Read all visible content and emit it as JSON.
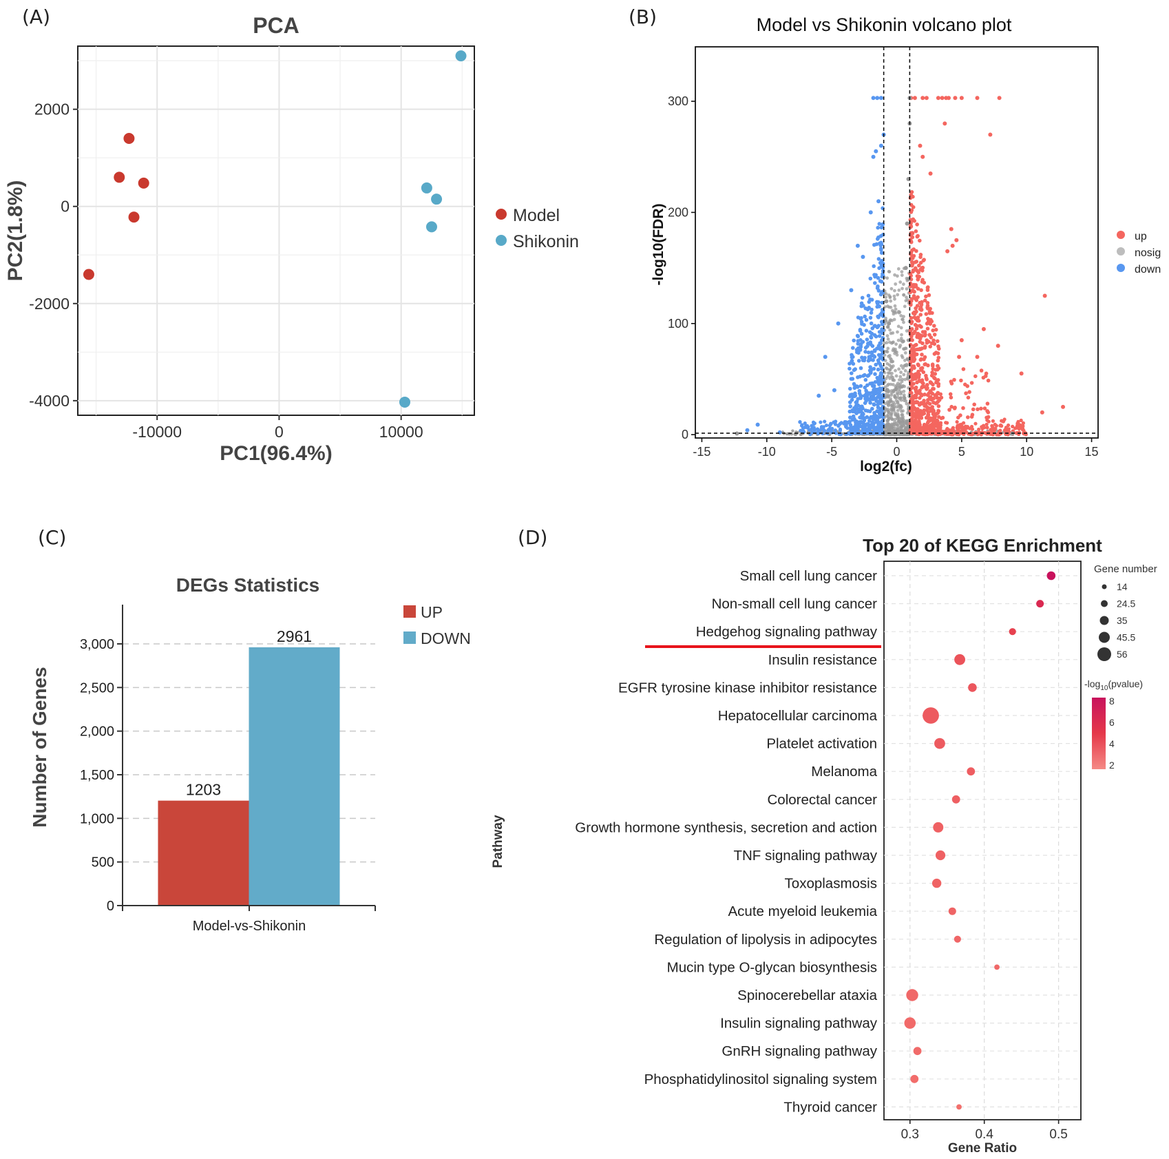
{
  "chart_data": [
    {
      "panel_label": "(A)",
      "type": "scatter",
      "title": "PCA",
      "xlabel": "PC1(96.4%)",
      "ylabel": "PC2(1.8%)",
      "xlim": [
        -16500,
        16000
      ],
      "ylim": [
        -4300,
        3300
      ],
      "xticks": [
        -10000,
        0,
        10000
      ],
      "xtick_labels": [
        "-10000",
        "0",
        "10000"
      ],
      "yticks": [
        2000,
        0,
        -2000,
        -4000
      ],
      "ytick_labels": [
        "2000",
        "0",
        "-2000",
        "-4000"
      ],
      "grid": true,
      "legend_position": "right",
      "series": [
        {
          "name": "Model",
          "color": "#c9392e",
          "x": [
            -12300,
            -13100,
            -11100,
            -11900,
            -15600
          ],
          "y": [
            1400,
            600,
            480,
            -220,
            -1400
          ]
        },
        {
          "name": "Shikonin",
          "color": "#58a9c8",
          "x": [
            14900,
            12100,
            12900,
            12500,
            10300
          ],
          "y": [
            3100,
            380,
            150,
            -420,
            -4030
          ]
        }
      ]
    },
    {
      "panel_label": "(B)",
      "type": "scatter",
      "title": "Model vs Shikonin volcano plot",
      "xlabel": "log2(fc)",
      "ylabel": "-log10(FDR)",
      "xlim": [
        -15.5,
        15.5
      ],
      "ylim": [
        -3,
        349
      ],
      "xticks": [
        -15,
        -10,
        -5,
        0,
        5,
        10,
        15
      ],
      "xtick_labels": [
        "-15",
        "-10",
        "-5",
        "0",
        "5",
        "10",
        "15"
      ],
      "yticks": [
        0,
        100,
        200,
        300
      ],
      "ytick_labels": [
        "0",
        "100",
        "200",
        "300"
      ],
      "thresholds": {
        "log2fc": [
          -1,
          1
        ],
        "neg_log10_fdr": 1.3
      },
      "legend_position": "right",
      "series": [
        {
          "name": "up",
          "color": "#f4665f"
        },
        {
          "name": "nosig",
          "color": "#9a9a9a"
        },
        {
          "name": "down",
          "color": "#5897f0"
        }
      ],
      "highlight_points": {
        "up": [
          [
            1.1,
            303
          ],
          [
            1.4,
            303
          ],
          [
            2.0,
            303
          ],
          [
            2.3,
            303
          ],
          [
            3.2,
            303
          ],
          [
            3.5,
            303
          ],
          [
            3.8,
            303
          ],
          [
            4.0,
            303
          ],
          [
            4.5,
            303
          ],
          [
            5.0,
            303
          ],
          [
            6.2,
            303
          ],
          [
            7.9,
            303
          ],
          [
            3.7,
            280
          ],
          [
            7.2,
            270
          ],
          [
            1.8,
            260
          ],
          [
            2.0,
            250
          ],
          [
            2.6,
            235
          ],
          [
            4.2,
            185
          ],
          [
            4.6,
            175
          ],
          [
            4.3,
            170
          ],
          [
            3.9,
            165
          ],
          [
            11.4,
            125
          ],
          [
            6.7,
            95
          ],
          [
            7.8,
            80
          ],
          [
            5.0,
            85
          ],
          [
            4.8,
            70
          ],
          [
            6.2,
            70
          ],
          [
            9.6,
            55
          ],
          [
            12.8,
            25
          ],
          [
            11.2,
            20
          ],
          [
            8.2,
            12
          ],
          [
            9.3,
            8
          ]
        ],
        "down": [
          [
            -1.8,
            303
          ],
          [
            -1.5,
            303
          ],
          [
            -1.2,
            303
          ],
          [
            -1.0,
            270
          ],
          [
            -1.2,
            260
          ],
          [
            -1.6,
            255
          ],
          [
            -1.8,
            250
          ],
          [
            -1.4,
            210
          ],
          [
            -2.0,
            200
          ],
          [
            -3.0,
            170
          ],
          [
            -2.6,
            160
          ],
          [
            -3.5,
            130
          ],
          [
            -4.5,
            100
          ],
          [
            -5.5,
            70
          ],
          [
            -4.8,
            40
          ],
          [
            -6.0,
            35
          ],
          [
            -10.7,
            9
          ],
          [
            -11.5,
            4
          ],
          [
            -7.2,
            3
          ],
          [
            -9.0,
            2
          ]
        ],
        "nosig": [
          [
            1.0,
            303
          ],
          [
            1.0,
            280
          ],
          [
            0.9,
            230
          ],
          [
            0.8,
            190
          ],
          [
            0.7,
            150
          ],
          [
            -0.8,
            120
          ],
          [
            -0.6,
            100
          ],
          [
            0.9,
            140
          ],
          [
            -12.3,
            1
          ],
          [
            8.9,
            1
          ]
        ]
      }
    },
    {
      "panel_label": "(C)",
      "type": "bar",
      "title": "DEGs Statistics",
      "xlabel": "",
      "ylabel": "Number of Genes",
      "categories": [
        "Model-vs-Shikonin"
      ],
      "series": [
        {
          "name": "UP",
          "color": "#c9463a",
          "values": [
            1203
          ]
        },
        {
          "name": "DOWN",
          "color": "#62abc9",
          "values": [
            2961
          ]
        }
      ],
      "data_labels": [
        "1203",
        "2961"
      ],
      "ylim": [
        0,
        3450
      ],
      "yticks": [
        0,
        500,
        1000,
        1500,
        2000,
        2500,
        3000
      ],
      "ytick_labels": [
        "0",
        "500",
        "1,000",
        "1,500",
        "2,000",
        "2,500",
        "3,000"
      ],
      "grid": "dashed-horizontal",
      "legend_position": "top-right"
    },
    {
      "panel_label": "(D)",
      "type": "scatter",
      "title": "Top 20 of KEGG Enrichment",
      "xlabel": "Gene Ratio",
      "ylabel": "Pathway",
      "xlim": [
        0.265,
        0.53
      ],
      "xticks": [
        0.3,
        0.4,
        0.5
      ],
      "xtick_labels": [
        "0.3",
        "0.4",
        "0.5"
      ],
      "size_legend_title": "Gene number",
      "size_legend_values": [
        "14",
        "24.5",
        "35",
        "45.5",
        "56"
      ],
      "color_legend_title": "-log",
      "color_legend_sub": "10",
      "color_legend_suffix": "(pvalue)",
      "color_legend_ticks": [
        "8",
        "6",
        "4",
        "2"
      ],
      "highlighted_pathway": "Hedgehog signaling pathway",
      "pathways": [
        {
          "name": "Small cell lung cancer",
          "ratio": 0.49,
          "genes": 24,
          "neglog10p": 8.2
        },
        {
          "name": "Non-small cell lung cancer",
          "ratio": 0.475,
          "genes": 20,
          "neglog10p": 6.3
        },
        {
          "name": "Hedgehog signaling pathway",
          "ratio": 0.438,
          "genes": 18,
          "neglog10p": 4.6
        },
        {
          "name": "Insulin resistance",
          "ratio": 0.367,
          "genes": 32,
          "neglog10p": 3.6
        },
        {
          "name": "EGFR tyrosine kinase inhibitor resistance",
          "ratio": 0.384,
          "genes": 24,
          "neglog10p": 3.4
        },
        {
          "name": "Hepatocellular carcinoma",
          "ratio": 0.328,
          "genes": 52,
          "neglog10p": 3.2
        },
        {
          "name": "Platelet activation",
          "ratio": 0.34,
          "genes": 32,
          "neglog10p": 3.1
        },
        {
          "name": "Melanoma",
          "ratio": 0.382,
          "genes": 22,
          "neglog10p": 3.0
        },
        {
          "name": "Colorectal cancer",
          "ratio": 0.362,
          "genes": 22,
          "neglog10p": 2.9
        },
        {
          "name": "Growth hormone synthesis, secretion and action",
          "ratio": 0.338,
          "genes": 30,
          "neglog10p": 2.8
        },
        {
          "name": "TNF signaling pathway",
          "ratio": 0.341,
          "genes": 28,
          "neglog10p": 2.8
        },
        {
          "name": "Toxoplasmosis",
          "ratio": 0.336,
          "genes": 26,
          "neglog10p": 2.7
        },
        {
          "name": "Acute myeloid leukemia",
          "ratio": 0.357,
          "genes": 20,
          "neglog10p": 2.6
        },
        {
          "name": "Regulation of lipolysis in adipocytes",
          "ratio": 0.364,
          "genes": 18,
          "neglog10p": 2.5
        },
        {
          "name": "Mucin type O-glycan biosynthesis",
          "ratio": 0.417,
          "genes": 12,
          "neglog10p": 2.4
        },
        {
          "name": "Spinocerebellar ataxia",
          "ratio": 0.303,
          "genes": 36,
          "neglog10p": 2.4
        },
        {
          "name": "Insulin signaling pathway",
          "ratio": 0.3,
          "genes": 34,
          "neglog10p": 2.3
        },
        {
          "name": "GnRH signaling pathway",
          "ratio": 0.31,
          "genes": 22,
          "neglog10p": 2.2
        },
        {
          "name": "Phosphatidylinositol signaling system",
          "ratio": 0.306,
          "genes": 22,
          "neglog10p": 2.1
        },
        {
          "name": "Thyroid cancer",
          "ratio": 0.366,
          "genes": 12,
          "neglog10p": 2.0
        }
      ]
    }
  ]
}
